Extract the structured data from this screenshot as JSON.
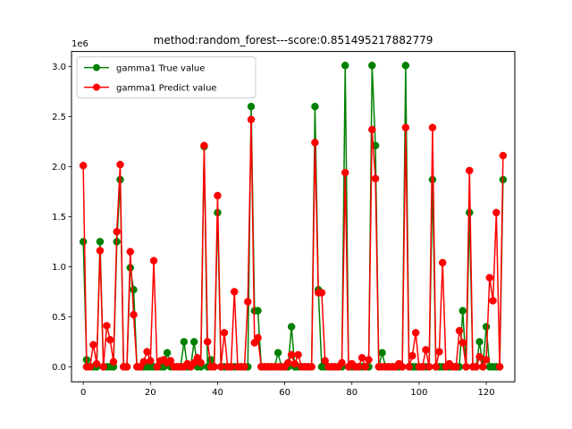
{
  "chart_data": {
    "type": "line",
    "title": "method:random_forest---score:0.851495217882779",
    "xlabel": "",
    "ylabel": "",
    "y_offset_label": "1e6",
    "xlim": [
      -3.5,
      128.5
    ],
    "ylim": [
      -150000,
      3150000
    ],
    "x_ticks": [
      0,
      20,
      40,
      60,
      80,
      100,
      120
    ],
    "y_ticks": [
      0,
      500000,
      1000000,
      1500000,
      2000000,
      2500000,
      3000000
    ],
    "y_tick_labels": [
      "0.0",
      "0.5",
      "1.0",
      "1.5",
      "2.0",
      "2.5",
      "3.0"
    ],
    "legend_position": "upper-left",
    "grid": false,
    "series": [
      {
        "name": "gamma1 True value",
        "color": "#008000",
        "values": [
          1250000,
          70000,
          0,
          0,
          0,
          1250000,
          0,
          0,
          0,
          0,
          1250000,
          1870000,
          0,
          0,
          990000,
          770000,
          0,
          0,
          0,
          0,
          0,
          0,
          0,
          0,
          0,
          140000,
          0,
          0,
          0,
          0,
          250000,
          0,
          0,
          250000,
          0,
          0,
          2200000,
          0,
          70000,
          0,
          1540000,
          0,
          0,
          0,
          0,
          0,
          0,
          0,
          0,
          0,
          2600000,
          560000,
          560000,
          0,
          0,
          0,
          0,
          0,
          140000,
          0,
          0,
          0,
          400000,
          0,
          0,
          0,
          0,
          0,
          0,
          2600000,
          770000,
          0,
          0,
          0,
          0,
          0,
          0,
          0,
          3010000,
          0,
          0,
          0,
          0,
          0,
          0,
          0,
          3010000,
          2210000,
          0,
          140000,
          0,
          0,
          0,
          0,
          0,
          0,
          3010000,
          0,
          0,
          0,
          0,
          0,
          0,
          0,
          1870000,
          0,
          0,
          0,
          0,
          0,
          0,
          0,
          0,
          560000,
          0,
          1540000,
          0,
          0,
          250000,
          0,
          400000,
          0,
          0,
          0,
          0,
          1870000
        ]
      },
      {
        "name": "gamma1 Predict value",
        "color": "#ff0000",
        "values": [
          2010000,
          0,
          0,
          220000,
          30000,
          1160000,
          0,
          410000,
          270000,
          50000,
          1350000,
          2020000,
          0,
          0,
          1150000,
          520000,
          0,
          0,
          50000,
          150000,
          60000,
          1060000,
          0,
          60000,
          70000,
          40000,
          60000,
          0,
          0,
          0,
          0,
          30000,
          0,
          40000,
          90000,
          40000,
          2210000,
          250000,
          0,
          0,
          1710000,
          0,
          340000,
          0,
          0,
          750000,
          0,
          0,
          0,
          650000,
          2470000,
          240000,
          290000,
          0,
          0,
          0,
          0,
          0,
          0,
          0,
          0,
          40000,
          120000,
          30000,
          120000,
          0,
          0,
          0,
          0,
          2240000,
          740000,
          740000,
          60000,
          0,
          0,
          0,
          0,
          40000,
          1940000,
          0,
          30000,
          0,
          0,
          90000,
          0,
          70000,
          2370000,
          1880000,
          0,
          0,
          0,
          0,
          0,
          0,
          30000,
          0,
          2390000,
          0,
          110000,
          340000,
          0,
          0,
          170000,
          0,
          2390000,
          0,
          150000,
          1040000,
          0,
          30000,
          0,
          0,
          360000,
          240000,
          0,
          1960000,
          0,
          0,
          100000,
          0,
          70000,
          890000,
          660000,
          1540000,
          0,
          2110000
        ]
      }
    ]
  }
}
